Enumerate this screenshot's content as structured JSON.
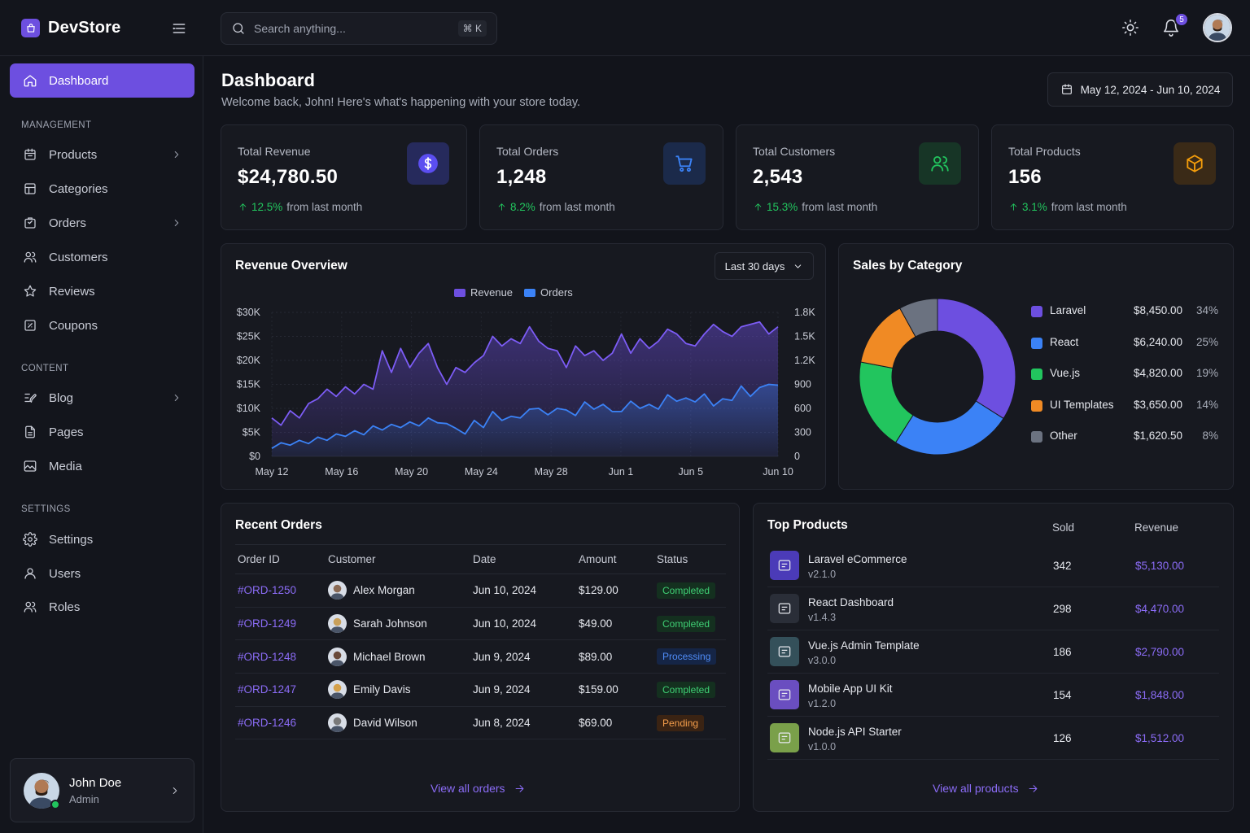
{
  "brand": {
    "name": "DevStore"
  },
  "search": {
    "placeholder": "Search anything...",
    "shortcut": "⌘ K"
  },
  "notifications": {
    "count": "5"
  },
  "sidebar": {
    "active": {
      "label": "Dashboard",
      "icon": "home-icon"
    },
    "sections": [
      {
        "title": "MANAGEMENT",
        "items": [
          {
            "label": "Products",
            "icon": "calendar-box-icon",
            "has_children": true
          },
          {
            "label": "Categories",
            "icon": "layout-icon",
            "has_children": false
          },
          {
            "label": "Orders",
            "icon": "bag-icon",
            "has_children": true
          },
          {
            "label": "Customers",
            "icon": "users-icon",
            "has_children": false
          },
          {
            "label": "Reviews",
            "icon": "star-icon",
            "has_children": false
          },
          {
            "label": "Coupons",
            "icon": "ticket-icon",
            "has_children": false
          }
        ]
      },
      {
        "title": "CONTENT",
        "items": [
          {
            "label": "Blog",
            "icon": "edit-icon",
            "has_children": true
          },
          {
            "label": "Pages",
            "icon": "file-icon",
            "has_children": false
          },
          {
            "label": "Media",
            "icon": "image-icon",
            "has_children": false
          }
        ]
      },
      {
        "title": "SETTINGS",
        "items": [
          {
            "label": "Settings",
            "icon": "gear-icon",
            "has_children": false
          },
          {
            "label": "Users",
            "icon": "user-icon",
            "has_children": false
          },
          {
            "label": "Roles",
            "icon": "users-icon",
            "has_children": false
          }
        ]
      }
    ],
    "user": {
      "name": "John Doe",
      "role": "Admin"
    }
  },
  "header": {
    "title": "Dashboard",
    "subtitle": "Welcome back, John! Here's what's happening with your store today.",
    "date_range": "May 12, 2024 - Jun 10, 2024"
  },
  "stats": [
    {
      "label": "Total Revenue",
      "value": "$24,780.50",
      "delta": "12.5%",
      "delta_suffix": "from last month",
      "icon": "dollar-icon",
      "color": "#6d5cf0"
    },
    {
      "label": "Total Orders",
      "value": "1,248",
      "delta": "8.2%",
      "delta_suffix": "from last month",
      "icon": "cart-icon",
      "color": "#3b82f6"
    },
    {
      "label": "Total Customers",
      "value": "2,543",
      "delta": "15.3%",
      "delta_suffix": "from last month",
      "icon": "users-icon",
      "color": "#22c55e"
    },
    {
      "label": "Total Products",
      "value": "156",
      "delta": "3.1%",
      "delta_suffix": "from last month",
      "icon": "box-icon",
      "color": "#f59e0b"
    }
  ],
  "revenue": {
    "title": "Revenue Overview",
    "range": "Last 30 days",
    "legend": [
      "Revenue",
      "Orders"
    ]
  },
  "sales": {
    "title": "Sales by Category"
  },
  "chart_data": [
    {
      "type": "area",
      "title": "Revenue Overview",
      "x_ticks": [
        "May 12",
        "May 16",
        "May 20",
        "May 24",
        "May 28",
        "Jun 1",
        "Jun 5",
        "Jun 10"
      ],
      "y_left_ticks": [
        "$0",
        "$5K",
        "$10K",
        "$15K",
        "$20K",
        "$25K",
        "$30K"
      ],
      "y_right_ticks": [
        "0",
        "300",
        "600",
        "900",
        "1.2K",
        "1.5K",
        "1.8K"
      ],
      "ylim_left": [
        0,
        30000
      ],
      "ylim_right": [
        0,
        1800
      ],
      "series": [
        {
          "name": "Revenue",
          "axis": "left",
          "color": "#7c5cf5",
          "values": [
            8000,
            6500,
            9500,
            8000,
            11000,
            12000,
            14000,
            12500,
            14500,
            13000,
            15000,
            14000,
            22000,
            17500,
            22500,
            18500,
            21500,
            23500,
            18500,
            15000,
            18500,
            17500,
            19500,
            21000,
            25000,
            23000,
            24500,
            23500,
            27000,
            24000,
            22500,
            22000,
            18500,
            23000,
            21000,
            22000,
            20000,
            21500,
            25500,
            21500,
            24500,
            22500,
            24000,
            26500,
            25500,
            23500,
            23000,
            25500,
            27500,
            26000,
            25000,
            27000,
            27500,
            28000,
            25500,
            27000
          ]
        },
        {
          "name": "Orders",
          "axis": "right",
          "color": "#3b82f6",
          "values": [
            100,
            170,
            140,
            200,
            160,
            240,
            200,
            280,
            250,
            320,
            270,
            380,
            330,
            400,
            360,
            430,
            380,
            480,
            420,
            410,
            350,
            280,
            450,
            360,
            560,
            450,
            500,
            480,
            590,
            600,
            520,
            600,
            580,
            510,
            680,
            590,
            650,
            560,
            560,
            690,
            600,
            650,
            590,
            770,
            690,
            730,
            680,
            780,
            630,
            720,
            700,
            880,
            750,
            860,
            900,
            890
          ]
        }
      ]
    },
    {
      "type": "pie",
      "title": "Sales by Category",
      "slices": [
        {
          "label": "Laravel",
          "amount": "$8,450.00",
          "percent": "34%",
          "value": 34,
          "color": "#6d4fe0"
        },
        {
          "label": "React",
          "amount": "$6,240.00",
          "percent": "25%",
          "value": 25,
          "color": "#3b82f6"
        },
        {
          "label": "Vue.js",
          "amount": "$4,820.00",
          "percent": "19%",
          "value": 19,
          "color": "#22c55e"
        },
        {
          "label": "UI Templates",
          "amount": "$3,650.00",
          "percent": "14%",
          "value": 14,
          "color": "#f08a24"
        },
        {
          "label": "Other",
          "amount": "$1,620.50",
          "percent": "8%",
          "value": 8,
          "color": "#6b7280"
        }
      ]
    }
  ],
  "orders": {
    "title": "Recent Orders",
    "columns": [
      "Order ID",
      "Customer",
      "Date",
      "Amount",
      "Status"
    ],
    "rows": [
      {
        "id": "#ORD-1250",
        "customer": "Alex Morgan",
        "date": "Jun 10, 2024",
        "amount": "$129.00",
        "status": "Completed",
        "status_class": "st-completed"
      },
      {
        "id": "#ORD-1249",
        "customer": "Sarah Johnson",
        "date": "Jun 10, 2024",
        "amount": "$49.00",
        "status": "Completed",
        "status_class": "st-completed"
      },
      {
        "id": "#ORD-1248",
        "customer": "Michael Brown",
        "date": "Jun 9, 2024",
        "amount": "$89.00",
        "status": "Processing",
        "status_class": "st-processing"
      },
      {
        "id": "#ORD-1247",
        "customer": "Emily Davis",
        "date": "Jun 9, 2024",
        "amount": "$159.00",
        "status": "Completed",
        "status_class": "st-completed"
      },
      {
        "id": "#ORD-1246",
        "customer": "David Wilson",
        "date": "Jun 8, 2024",
        "amount": "$69.00",
        "status": "Pending",
        "status_class": "st-pending"
      }
    ],
    "view_all": "View all orders"
  },
  "products": {
    "title": "Top Products",
    "columns": [
      "Sold",
      "Revenue"
    ],
    "rows": [
      {
        "name": "Laravel eCommerce",
        "version": "v2.1.0",
        "sold": "342",
        "revenue": "$5,130.00",
        "color": "#4b3bb8"
      },
      {
        "name": "React Dashboard",
        "version": "v1.4.3",
        "sold": "298",
        "revenue": "$4,470.00",
        "color": "#2a2e38"
      },
      {
        "name": "Vue.js Admin Template",
        "version": "v3.0.0",
        "sold": "186",
        "revenue": "$2,790.00",
        "color": "#34505a"
      },
      {
        "name": "Mobile App UI Kit",
        "version": "v1.2.0",
        "sold": "154",
        "revenue": "$1,848.00",
        "color": "#6a4ec0"
      },
      {
        "name": "Node.js API Starter",
        "version": "v1.0.0",
        "sold": "126",
        "revenue": "$1,512.00",
        "color": "#7aa04a"
      }
    ],
    "view_all": "View all products"
  }
}
